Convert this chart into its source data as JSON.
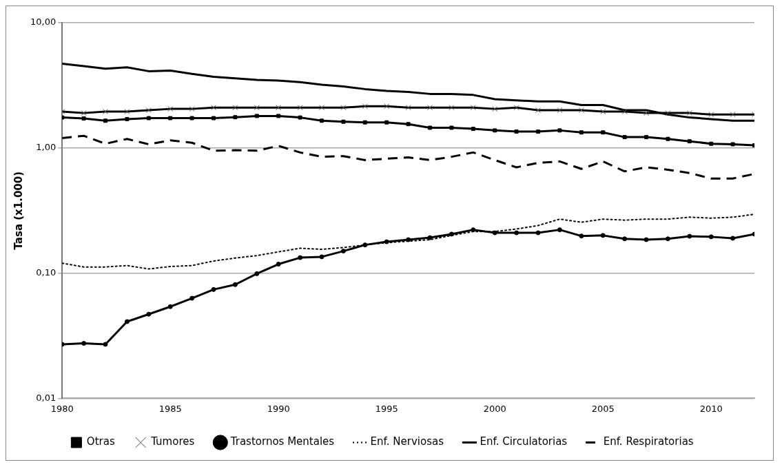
{
  "chart_data": {
    "type": "line",
    "ylabel": "Tasa (x1.000)",
    "log": "y",
    "grid": "y",
    "legend": "bottom",
    "x": [
      1980,
      1981,
      1982,
      1983,
      1984,
      1985,
      1986,
      1987,
      1988,
      1989,
      1990,
      1991,
      1992,
      1993,
      1994,
      1995,
      1996,
      1997,
      1998,
      1999,
      2000,
      2001,
      2002,
      2003,
      2004,
      2005,
      2006,
      2007,
      2008,
      2009,
      2010,
      2011,
      2012
    ],
    "xlim": [
      1980,
      2012
    ],
    "xticks": [
      1980,
      1985,
      1990,
      1995,
      2000,
      2005,
      2010
    ],
    "ylim": [
      0.01,
      10
    ],
    "yticks": [
      {
        "value": 0.01,
        "label": "0,01"
      },
      {
        "value": 0.1,
        "label": "0,10"
      },
      {
        "value": 1,
        "label": "1,00"
      },
      {
        "value": 10,
        "label": "10,00"
      }
    ],
    "series": [
      {
        "name": "Otras",
        "color": "#000000",
        "marker": "square",
        "line_style": "solid",
        "values": [
          1.75,
          1.72,
          1.65,
          1.7,
          1.73,
          1.73,
          1.73,
          1.73,
          1.76,
          1.8,
          1.8,
          1.75,
          1.65,
          1.62,
          1.6,
          1.6,
          1.55,
          1.45,
          1.45,
          1.42,
          1.38,
          1.35,
          1.35,
          1.38,
          1.33,
          1.33,
          1.22,
          1.22,
          1.18,
          1.13,
          1.08,
          1.07,
          1.05
        ]
      },
      {
        "name": "Tumores",
        "color": "#000000",
        "marker": "cross",
        "line_style": "solid",
        "values": [
          1.95,
          1.9,
          1.95,
          1.95,
          2.0,
          2.05,
          2.05,
          2.1,
          2.1,
          2.1,
          2.1,
          2.1,
          2.1,
          2.1,
          2.15,
          2.15,
          2.1,
          2.1,
          2.1,
          2.1,
          2.05,
          2.1,
          2.0,
          2.0,
          2.0,
          1.95,
          1.95,
          1.9,
          1.9,
          1.9,
          1.85,
          1.85,
          1.85
        ]
      },
      {
        "name": "Trastornos Mentales",
        "color": "#000000",
        "marker": "circle",
        "line_style": "solid",
        "values": [
          0.027,
          0.0275,
          0.027,
          0.041,
          0.047,
          0.054,
          0.063,
          0.074,
          0.081,
          0.099,
          0.118,
          0.133,
          0.135,
          0.15,
          0.168,
          0.178,
          0.185,
          0.192,
          0.205,
          0.222,
          0.21,
          0.21,
          0.21,
          0.222,
          0.198,
          0.2,
          0.188,
          0.185,
          0.188,
          0.197,
          0.195,
          0.19,
          0.205
        ]
      },
      {
        "name": "Enf. Nerviosas",
        "color": "#000000",
        "marker": "none",
        "line_style": "dotted",
        "values": [
          0.12,
          0.112,
          0.112,
          0.115,
          0.108,
          0.113,
          0.115,
          0.125,
          0.132,
          0.138,
          0.148,
          0.158,
          0.155,
          0.16,
          0.168,
          0.175,
          0.18,
          0.185,
          0.2,
          0.215,
          0.215,
          0.225,
          0.24,
          0.27,
          0.255,
          0.27,
          0.265,
          0.27,
          0.27,
          0.28,
          0.275,
          0.28,
          0.295
        ]
      },
      {
        "name": "Enf. Circulatorias",
        "color": "#000000",
        "marker": "none",
        "line_style": "solid",
        "values": [
          4.7,
          4.5,
          4.3,
          4.4,
          4.1,
          4.15,
          3.9,
          3.7,
          3.6,
          3.5,
          3.45,
          3.35,
          3.2,
          3.1,
          2.95,
          2.85,
          2.8,
          2.7,
          2.7,
          2.65,
          2.45,
          2.4,
          2.35,
          2.35,
          2.2,
          2.2,
          2.0,
          2.0,
          1.85,
          1.75,
          1.7,
          1.65,
          1.65
        ]
      },
      {
        "name": "Enf. Respiratorias",
        "color": "#000000",
        "marker": "none",
        "line_style": "dashed",
        "values": [
          1.2,
          1.25,
          1.08,
          1.18,
          1.07,
          1.15,
          1.1,
          0.95,
          0.96,
          0.95,
          1.04,
          0.92,
          0.85,
          0.86,
          0.8,
          0.82,
          0.84,
          0.8,
          0.85,
          0.92,
          0.8,
          0.7,
          0.76,
          0.78,
          0.68,
          0.78,
          0.65,
          0.7,
          0.67,
          0.63,
          0.57,
          0.57,
          0.62
        ]
      }
    ]
  }
}
